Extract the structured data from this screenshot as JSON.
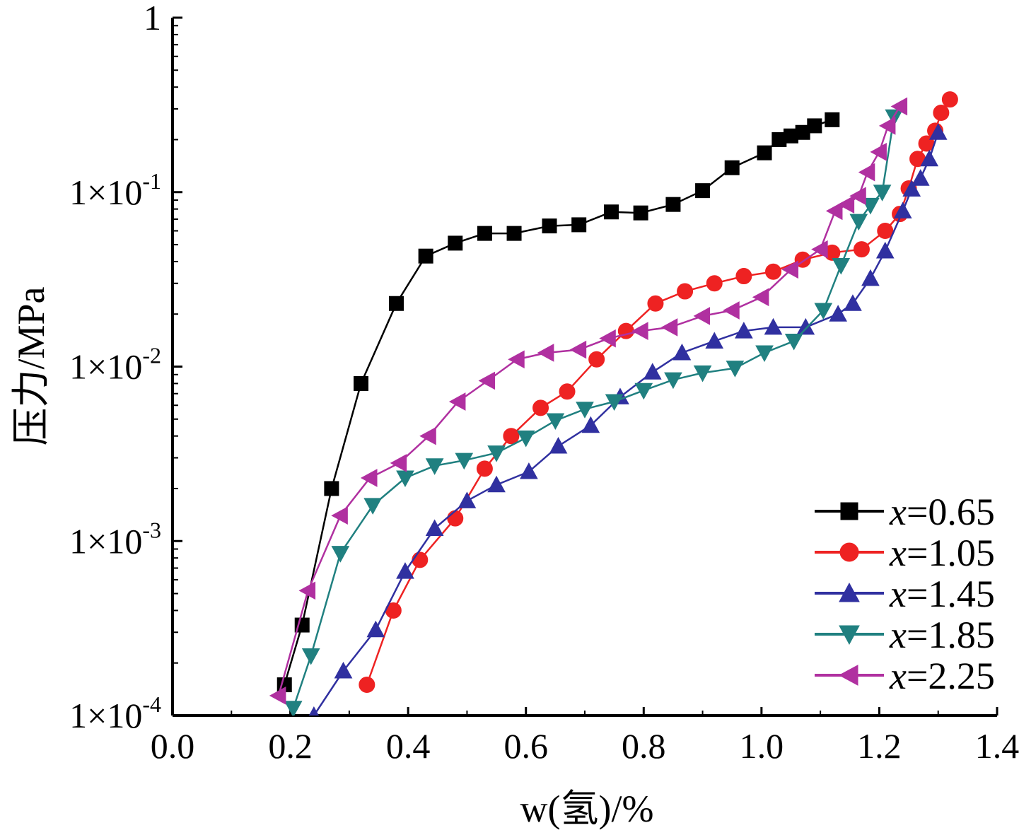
{
  "chart_data": {
    "type": "line",
    "title": "",
    "xlabel": "w(氢)/%",
    "ylabel": "压力/MPa",
    "xlim": [
      0.0,
      1.4
    ],
    "ylim": [
      0.0001,
      1
    ],
    "y_scale": "log",
    "x_ticks": [
      "0.0",
      "0.2",
      "0.4",
      "0.6",
      "0.8",
      "1.0",
      "1.2",
      "1.4"
    ],
    "x_tick_values": [
      0.0,
      0.2,
      0.4,
      0.6,
      0.8,
      1.0,
      1.2,
      1.4
    ],
    "y_tick_values": [
      0.0001,
      0.001,
      0.01,
      0.1,
      1
    ],
    "y_ticks": [
      {
        "mant": "1×10",
        "exp": "-4"
      },
      {
        "mant": "1×10",
        "exp": "-3"
      },
      {
        "mant": "1×10",
        "exp": "-2"
      },
      {
        "mant": "1×10",
        "exp": "-1"
      },
      {
        "mant": "1",
        "exp": ""
      }
    ],
    "grid": false,
    "legend_position": "bottom-right",
    "series": [
      {
        "name": "x=0.65",
        "color": "#000000",
        "marker": "square",
        "x": [
          0.19,
          0.22,
          0.27,
          0.32,
          0.38,
          0.43,
          0.48,
          0.53,
          0.58,
          0.64,
          0.69,
          0.745,
          0.795,
          0.85,
          0.9,
          0.95,
          1.005,
          1.03,
          1.05,
          1.07,
          1.09,
          1.12
        ],
        "y": [
          0.00015,
          0.00033,
          0.002,
          0.008,
          0.023,
          0.043,
          0.051,
          0.058,
          0.058,
          0.064,
          0.065,
          0.077,
          0.076,
          0.085,
          0.102,
          0.138,
          0.168,
          0.2,
          0.21,
          0.22,
          0.24,
          0.26
        ]
      },
      {
        "name": "x=1.05",
        "color": "#ee2222",
        "marker": "circle",
        "x": [
          0.33,
          0.375,
          0.42,
          0.48,
          0.53,
          0.575,
          0.625,
          0.67,
          0.72,
          0.77,
          0.82,
          0.87,
          0.92,
          0.97,
          1.02,
          1.07,
          1.12,
          1.17,
          1.21,
          1.235,
          1.25,
          1.265,
          1.28,
          1.295,
          1.305,
          1.32
        ],
        "y": [
          0.00015,
          0.0004,
          0.00078,
          0.00135,
          0.0026,
          0.004,
          0.0058,
          0.0072,
          0.011,
          0.016,
          0.023,
          0.027,
          0.03,
          0.033,
          0.035,
          0.041,
          0.045,
          0.047,
          0.06,
          0.075,
          0.105,
          0.155,
          0.19,
          0.225,
          0.285,
          0.34
        ]
      },
      {
        "name": "x=1.45",
        "color": "#3030a0",
        "marker": "triangle-up",
        "x": [
          0.24,
          0.29,
          0.345,
          0.395,
          0.445,
          0.5,
          0.55,
          0.605,
          0.655,
          0.71,
          0.76,
          0.815,
          0.865,
          0.92,
          0.97,
          1.02,
          1.075,
          1.13,
          1.155,
          1.185,
          1.21,
          1.24,
          1.255,
          1.27,
          1.285,
          1.3
        ],
        "y": [
          0.0001,
          0.00018,
          0.00031,
          0.00067,
          0.00118,
          0.0017,
          0.0021,
          0.0025,
          0.0035,
          0.0046,
          0.0067,
          0.0093,
          0.012,
          0.014,
          0.016,
          0.0168,
          0.0168,
          0.02,
          0.023,
          0.032,
          0.046,
          0.078,
          0.104,
          0.12,
          0.155,
          0.22
        ]
      },
      {
        "name": "x=1.85",
        "color": "#208080",
        "marker": "triangle-down",
        "x": [
          0.205,
          0.235,
          0.285,
          0.34,
          0.395,
          0.445,
          0.495,
          0.55,
          0.6,
          0.65,
          0.7,
          0.75,
          0.8,
          0.85,
          0.9,
          0.955,
          1.005,
          1.055,
          1.105,
          1.135,
          1.165,
          1.185,
          1.205,
          1.225
        ],
        "y": [
          0.00011,
          0.00022,
          0.00085,
          0.0016,
          0.0023,
          0.0027,
          0.0029,
          0.0032,
          0.0039,
          0.0049,
          0.0057,
          0.0063,
          0.0073,
          0.0084,
          0.0092,
          0.0098,
          0.012,
          0.014,
          0.021,
          0.038,
          0.068,
          0.084,
          0.1,
          0.27
        ]
      },
      {
        "name": "x=2.25",
        "color": "#b030a0",
        "marker": "triangle-left",
        "x": [
          0.18,
          0.23,
          0.285,
          0.335,
          0.385,
          0.435,
          0.485,
          0.535,
          0.585,
          0.635,
          0.69,
          0.74,
          0.795,
          0.845,
          0.9,
          0.95,
          1.0,
          1.05,
          1.1,
          1.125,
          1.145,
          1.165,
          1.18,
          1.2,
          1.215,
          1.235
        ],
        "y": [
          0.00013,
          0.00052,
          0.0014,
          0.0023,
          0.0028,
          0.004,
          0.0063,
          0.0083,
          0.011,
          0.012,
          0.0125,
          0.0145,
          0.016,
          0.0168,
          0.0195,
          0.021,
          0.025,
          0.036,
          0.047,
          0.078,
          0.085,
          0.095,
          0.13,
          0.17,
          0.24,
          0.31
        ]
      }
    ]
  }
}
